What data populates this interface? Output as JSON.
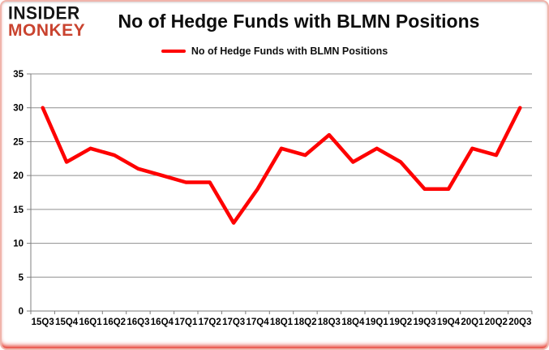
{
  "header": {
    "logo_line1": "INSIDER",
    "logo_line2": "MONKEY",
    "title": "No of Hedge Funds with BLMN Positions"
  },
  "legend": {
    "label": "No of Hedge Funds with BLMN Positions"
  },
  "chart_data": {
    "type": "line",
    "title": "No of Hedge Funds with BLMN Positions",
    "categories": [
      "15Q3",
      "15Q4",
      "16Q1",
      "16Q2",
      "16Q3",
      "16Q4",
      "17Q1",
      "17Q2",
      "17Q3",
      "17Q4",
      "18Q1",
      "18Q2",
      "18Q3",
      "18Q4",
      "19Q1",
      "19Q2",
      "19Q3",
      "19Q4",
      "20Q1",
      "20Q2",
      "20Q3"
    ],
    "series": [
      {
        "name": "No of Hedge Funds with BLMN Positions",
        "values": [
          30,
          22,
          24,
          23,
          21,
          20,
          19,
          19,
          13,
          18,
          24,
          23,
          26,
          22,
          24,
          22,
          18,
          18,
          24,
          23,
          30
        ],
        "color": "#fe0000"
      }
    ],
    "xlabel": "",
    "ylabel": "",
    "ylim": [
      0,
      35
    ],
    "ytick_interval": 5,
    "grid": true,
    "legend_position": "top-center"
  },
  "colors": {
    "line": "#fe0000",
    "grid": "#8f8f8f",
    "axis": "#7f7f7f",
    "logo_black": "#141414",
    "logo_red": "#c9432f",
    "frame_pink": "#f0b4ab",
    "frame_bottom_red": "#e22012"
  }
}
